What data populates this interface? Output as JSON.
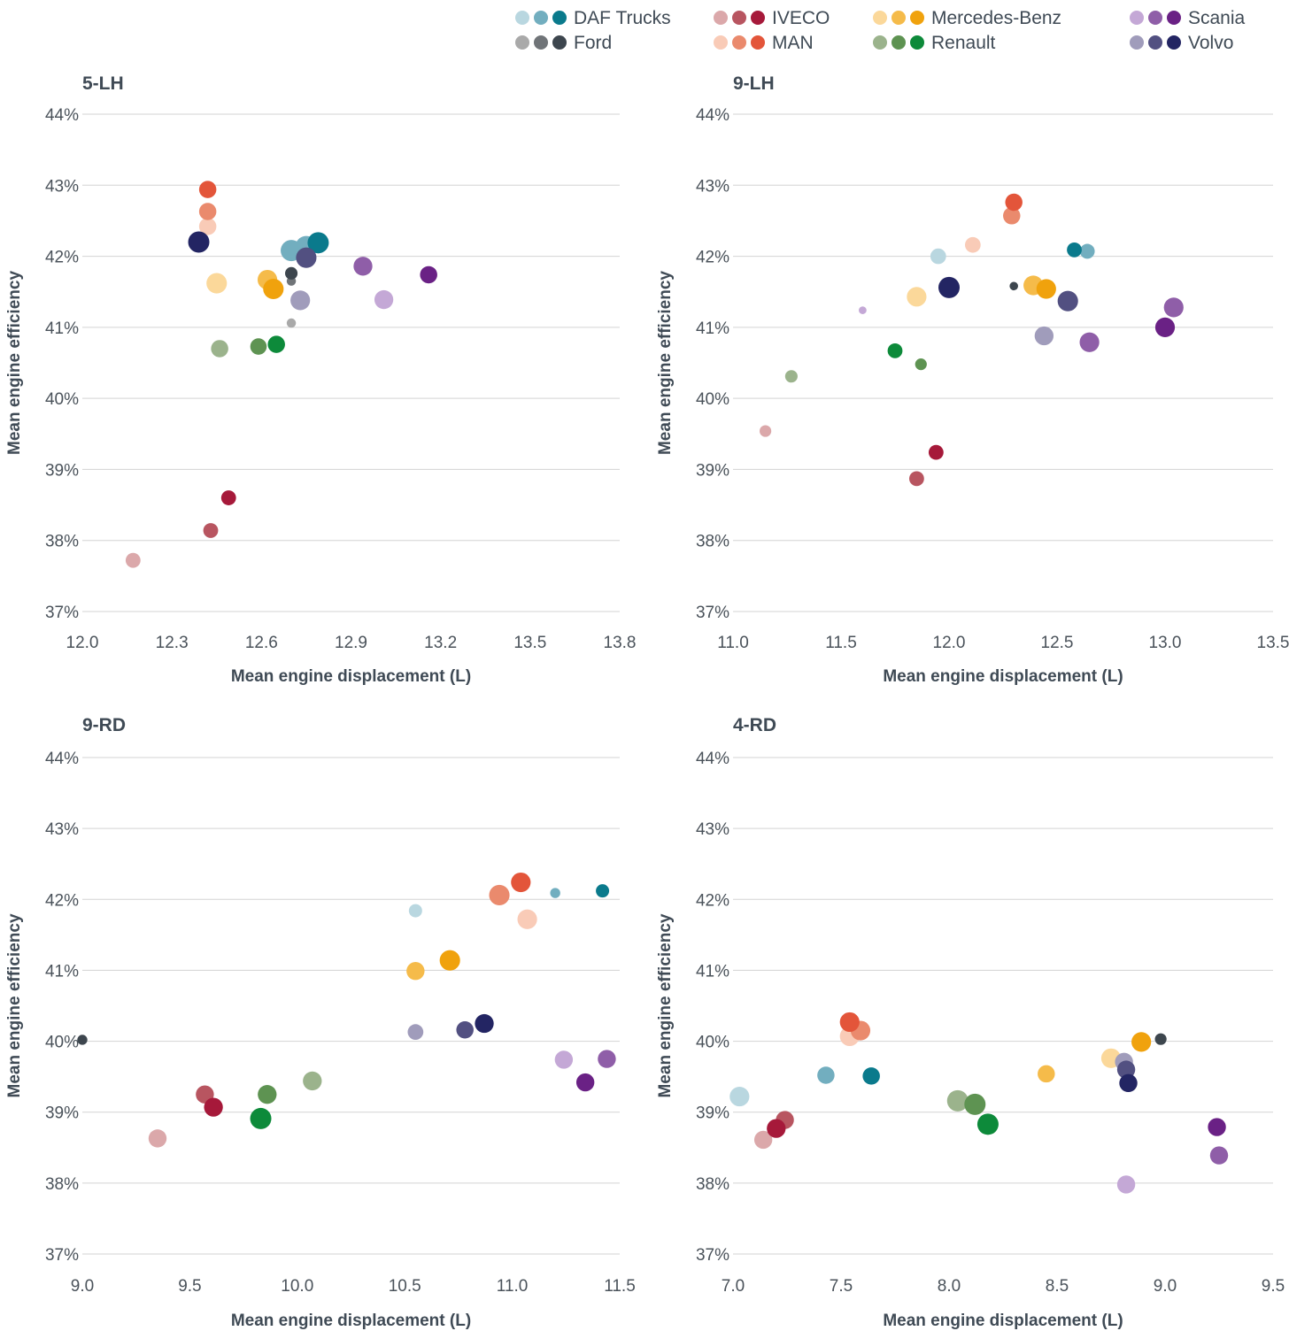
{
  "legend": [
    {
      "name": "DAF Trucks",
      "colors": [
        "#b9d7e0",
        "#72aebf",
        "#0a7a8c"
      ]
    },
    {
      "name": "IVECO",
      "colors": [
        "#dba8aa",
        "#b85560",
        "#a6193a"
      ]
    },
    {
      "name": "Mercedes-Benz",
      "colors": [
        "#fbd89a",
        "#f5bb4a",
        "#f0a20d"
      ]
    },
    {
      "name": "Scania",
      "colors": [
        "#c4a8d6",
        "#8f5ea8",
        "#6a2185"
      ]
    },
    {
      "name": "Ford",
      "colors": [
        "#a9a9a9",
        "#707478",
        "#3d464e"
      ]
    },
    {
      "name": "MAN",
      "colors": [
        "#f9cbb7",
        "#ea8a6d",
        "#e3553a"
      ]
    },
    {
      "name": "Renault",
      "colors": [
        "#9bb38c",
        "#5e9352",
        "#0d8a3a"
      ]
    },
    {
      "name": "Volvo",
      "colors": [
        "#a09cbb",
        "#525081",
        "#232563"
      ]
    }
  ],
  "chart_data": [
    {
      "type": "scatter",
      "title": "5-LH",
      "xlabel": "Mean engine displacement (L)",
      "ylabel": "Mean engine efficiency",
      "xlim": [
        12.0,
        13.8
      ],
      "ylim": [
        37,
        44
      ],
      "xticks": [
        "12.0",
        "12.3",
        "12.6",
        "12.9",
        "13.2",
        "13.5",
        "13.8"
      ],
      "yticks": [
        "37%",
        "38%",
        "39%",
        "40%",
        "41%",
        "42%",
        "43%",
        "44%"
      ],
      "points": [
        {
          "make": "DAF Trucks",
          "shade": 1,
          "x": 12.7,
          "y": 42.08,
          "size": 1.0
        },
        {
          "make": "DAF Trucks",
          "shade": 1,
          "x": 12.75,
          "y": 42.13,
          "size": 1.05
        },
        {
          "make": "DAF Trucks",
          "shade": 2,
          "x": 12.79,
          "y": 42.19,
          "size": 1.0
        },
        {
          "make": "IVECO",
          "shade": 0,
          "x": 12.17,
          "y": 37.72,
          "size": 0.6
        },
        {
          "make": "IVECO",
          "shade": 1,
          "x": 12.43,
          "y": 38.14,
          "size": 0.6
        },
        {
          "make": "IVECO",
          "shade": 2,
          "x": 12.49,
          "y": 38.6,
          "size": 0.6
        },
        {
          "make": "Mercedes-Benz",
          "shade": 0,
          "x": 12.45,
          "y": 41.62,
          "size": 0.95
        },
        {
          "make": "Mercedes-Benz",
          "shade": 1,
          "x": 12.62,
          "y": 41.67,
          "size": 0.9
        },
        {
          "make": "Mercedes-Benz",
          "shade": 2,
          "x": 12.64,
          "y": 41.54,
          "size": 0.95
        },
        {
          "make": "Scania",
          "shade": 0,
          "x": 13.01,
          "y": 41.39,
          "size": 0.85
        },
        {
          "make": "Scania",
          "shade": 1,
          "x": 12.94,
          "y": 41.86,
          "size": 0.85
        },
        {
          "make": "Scania",
          "shade": 2,
          "x": 13.16,
          "y": 41.74,
          "size": 0.75
        },
        {
          "make": "Ford",
          "shade": 0,
          "x": 12.7,
          "y": 41.06,
          "size": 0.25
        },
        {
          "make": "Ford",
          "shade": 1,
          "x": 12.7,
          "y": 41.65,
          "size": 0.25
        },
        {
          "make": "Ford",
          "shade": 2,
          "x": 12.7,
          "y": 41.76,
          "size": 0.45
        },
        {
          "make": "MAN",
          "shade": 0,
          "x": 12.42,
          "y": 42.42,
          "size": 0.75
        },
        {
          "make": "MAN",
          "shade": 1,
          "x": 12.42,
          "y": 42.63,
          "size": 0.75
        },
        {
          "make": "MAN",
          "shade": 2,
          "x": 12.42,
          "y": 42.94,
          "size": 0.75
        },
        {
          "make": "Renault",
          "shade": 0,
          "x": 12.46,
          "y": 40.7,
          "size": 0.75
        },
        {
          "make": "Renault",
          "shade": 1,
          "x": 12.59,
          "y": 40.73,
          "size": 0.7
        },
        {
          "make": "Renault",
          "shade": 2,
          "x": 12.65,
          "y": 40.76,
          "size": 0.75
        },
        {
          "make": "Volvo",
          "shade": 0,
          "x": 12.73,
          "y": 41.38,
          "size": 0.9
        },
        {
          "make": "Volvo",
          "shade": 1,
          "x": 12.75,
          "y": 41.98,
          "size": 0.95
        },
        {
          "make": "Volvo",
          "shade": 2,
          "x": 12.39,
          "y": 42.2,
          "size": 1.0
        }
      ]
    },
    {
      "type": "scatter",
      "title": "9-LH",
      "xlabel": "Mean engine displacement (L)",
      "ylabel": "Mean engine efficiency",
      "xlim": [
        11.0,
        13.5
      ],
      "ylim": [
        37,
        44
      ],
      "xticks": [
        "11.0",
        "11.5",
        "12.0",
        "12.5",
        "13.0",
        "13.5"
      ],
      "yticks": [
        "37%",
        "38%",
        "39%",
        "40%",
        "41%",
        "42%",
        "43%",
        "44%"
      ],
      "points": [
        {
          "make": "DAF Trucks",
          "shade": 0,
          "x": 11.95,
          "y": 42.0,
          "size": 0.65
        },
        {
          "make": "DAF Trucks",
          "shade": 1,
          "x": 12.64,
          "y": 42.07,
          "size": 0.6
        },
        {
          "make": "DAF Trucks",
          "shade": 2,
          "x": 12.58,
          "y": 42.09,
          "size": 0.6
        },
        {
          "make": "IVECO",
          "shade": 0,
          "x": 11.15,
          "y": 39.54,
          "size": 0.4
        },
        {
          "make": "IVECO",
          "shade": 1,
          "x": 11.85,
          "y": 38.87,
          "size": 0.6
        },
        {
          "make": "IVECO",
          "shade": 2,
          "x": 11.94,
          "y": 39.24,
          "size": 0.6
        },
        {
          "make": "Mercedes-Benz",
          "shade": 0,
          "x": 11.85,
          "y": 41.43,
          "size": 0.9
        },
        {
          "make": "Mercedes-Benz",
          "shade": 1,
          "x": 12.39,
          "y": 41.59,
          "size": 0.9
        },
        {
          "make": "Mercedes-Benz",
          "shade": 2,
          "x": 12.45,
          "y": 41.54,
          "size": 0.9
        },
        {
          "make": "Scania",
          "shade": 0,
          "x": 11.6,
          "y": 41.24,
          "size": 0.15
        },
        {
          "make": "Scania",
          "shade": 1,
          "x": 13.04,
          "y": 41.28,
          "size": 0.9
        },
        {
          "make": "Scania",
          "shade": 1,
          "x": 12.65,
          "y": 40.79,
          "size": 0.9
        },
        {
          "make": "Scania",
          "shade": 2,
          "x": 13.0,
          "y": 41.0,
          "size": 0.9
        },
        {
          "make": "Ford",
          "shade": 2,
          "x": 12.3,
          "y": 41.58,
          "size": 0.2
        },
        {
          "make": "MAN",
          "shade": 0,
          "x": 12.11,
          "y": 42.16,
          "size": 0.65
        },
        {
          "make": "MAN",
          "shade": 1,
          "x": 12.29,
          "y": 42.57,
          "size": 0.75
        },
        {
          "make": "MAN",
          "shade": 2,
          "x": 12.3,
          "y": 42.76,
          "size": 0.75
        },
        {
          "make": "Renault",
          "shade": 0,
          "x": 11.27,
          "y": 40.31,
          "size": 0.45
        },
        {
          "make": "Renault",
          "shade": 1,
          "x": 11.87,
          "y": 40.48,
          "size": 0.4
        },
        {
          "make": "Renault",
          "shade": 2,
          "x": 11.75,
          "y": 40.67,
          "size": 0.6
        },
        {
          "make": "Volvo",
          "shade": 0,
          "x": 12.44,
          "y": 40.88,
          "size": 0.85
        },
        {
          "make": "Volvo",
          "shade": 1,
          "x": 12.55,
          "y": 41.37,
          "size": 0.95
        },
        {
          "make": "Volvo",
          "shade": 2,
          "x": 12.0,
          "y": 41.56,
          "size": 1.0
        }
      ]
    },
    {
      "type": "scatter",
      "title": "9-RD",
      "xlabel": "Mean engine displacement (L)",
      "ylabel": "Mean engine efficiency",
      "xlim": [
        9.0,
        11.5
      ],
      "ylim": [
        37,
        44
      ],
      "xticks": [
        "9.0",
        "9.5",
        "10.0",
        "10.5",
        "11.0",
        "11.5"
      ],
      "yticks": [
        "37%",
        "38%",
        "39%",
        "40%",
        "41%",
        "42%",
        "43%",
        "44%"
      ],
      "points": [
        {
          "make": "DAF Trucks",
          "shade": 0,
          "x": 10.55,
          "y": 41.84,
          "size": 0.5
        },
        {
          "make": "DAF Trucks",
          "shade": 1,
          "x": 11.2,
          "y": 42.09,
          "size": 0.3
        },
        {
          "make": "DAF Trucks",
          "shade": 2,
          "x": 11.42,
          "y": 42.12,
          "size": 0.5
        },
        {
          "make": "IVECO",
          "shade": 0,
          "x": 9.35,
          "y": 38.63,
          "size": 0.8
        },
        {
          "make": "IVECO",
          "shade": 1,
          "x": 9.57,
          "y": 39.25,
          "size": 0.8
        },
        {
          "make": "IVECO",
          "shade": 2,
          "x": 9.61,
          "y": 39.07,
          "size": 0.85
        },
        {
          "make": "Mercedes-Benz",
          "shade": 1,
          "x": 10.55,
          "y": 40.99,
          "size": 0.8
        },
        {
          "make": "Mercedes-Benz",
          "shade": 2,
          "x": 10.71,
          "y": 41.14,
          "size": 0.95
        },
        {
          "make": "Scania",
          "shade": 0,
          "x": 11.24,
          "y": 39.74,
          "size": 0.8
        },
        {
          "make": "Scania",
          "shade": 1,
          "x": 11.44,
          "y": 39.75,
          "size": 0.8
        },
        {
          "make": "Scania",
          "shade": 2,
          "x": 11.34,
          "y": 39.42,
          "size": 0.8
        },
        {
          "make": "Ford",
          "shade": 2,
          "x": 9.0,
          "y": 40.02,
          "size": 0.3
        },
        {
          "make": "MAN",
          "shade": 0,
          "x": 11.07,
          "y": 41.72,
          "size": 0.9
        },
        {
          "make": "MAN",
          "shade": 1,
          "x": 10.94,
          "y": 42.06,
          "size": 0.95
        },
        {
          "make": "MAN",
          "shade": 2,
          "x": 11.04,
          "y": 42.24,
          "size": 0.9
        },
        {
          "make": "Renault",
          "shade": 0,
          "x": 10.07,
          "y": 39.44,
          "size": 0.85
        },
        {
          "make": "Renault",
          "shade": 1,
          "x": 9.86,
          "y": 39.25,
          "size": 0.85
        },
        {
          "make": "Renault",
          "shade": 2,
          "x": 9.83,
          "y": 38.91,
          "size": 1.0
        },
        {
          "make": "Volvo",
          "shade": 0,
          "x": 10.55,
          "y": 40.13,
          "size": 0.65
        },
        {
          "make": "Volvo",
          "shade": 1,
          "x": 10.78,
          "y": 40.16,
          "size": 0.75
        },
        {
          "make": "Volvo",
          "shade": 2,
          "x": 10.87,
          "y": 40.25,
          "size": 0.85
        }
      ]
    },
    {
      "type": "scatter",
      "title": "4-RD",
      "xlabel": "Mean engine displacement (L)",
      "ylabel": "Mean engine efficiency",
      "xlim": [
        7.0,
        9.5
      ],
      "ylim": [
        37,
        44
      ],
      "xticks": [
        "7.0",
        "7.5",
        "8.0",
        "8.5",
        "9.0",
        "9.5"
      ],
      "yticks": [
        "37%",
        "38%",
        "39%",
        "40%",
        "41%",
        "42%",
        "43%",
        "44%"
      ],
      "points": [
        {
          "make": "DAF Trucks",
          "shade": 0,
          "x": 7.03,
          "y": 39.22,
          "size": 0.9
        },
        {
          "make": "DAF Trucks",
          "shade": 1,
          "x": 7.43,
          "y": 39.52,
          "size": 0.75
        },
        {
          "make": "DAF Trucks",
          "shade": 2,
          "x": 7.64,
          "y": 39.51,
          "size": 0.75
        },
        {
          "make": "IVECO",
          "shade": 0,
          "x": 7.14,
          "y": 38.61,
          "size": 0.8
        },
        {
          "make": "IVECO",
          "shade": 1,
          "x": 7.24,
          "y": 38.89,
          "size": 0.8
        },
        {
          "make": "IVECO",
          "shade": 2,
          "x": 7.2,
          "y": 38.77,
          "size": 0.85
        },
        {
          "make": "Mercedes-Benz",
          "shade": 0,
          "x": 8.75,
          "y": 39.76,
          "size": 0.9
        },
        {
          "make": "Mercedes-Benz",
          "shade": 1,
          "x": 8.45,
          "y": 39.54,
          "size": 0.75
        },
        {
          "make": "Mercedes-Benz",
          "shade": 2,
          "x": 8.89,
          "y": 39.99,
          "size": 0.9
        },
        {
          "make": "Scania",
          "shade": 0,
          "x": 8.82,
          "y": 37.98,
          "size": 0.8
        },
        {
          "make": "Scania",
          "shade": 1,
          "x": 9.25,
          "y": 38.39,
          "size": 0.8
        },
        {
          "make": "Scania",
          "shade": 2,
          "x": 9.24,
          "y": 38.79,
          "size": 0.8
        },
        {
          "make": "Ford",
          "shade": 2,
          "x": 8.98,
          "y": 40.03,
          "size": 0.4
        },
        {
          "make": "MAN",
          "shade": 0,
          "x": 7.54,
          "y": 40.07,
          "size": 0.9
        },
        {
          "make": "MAN",
          "shade": 1,
          "x": 7.59,
          "y": 40.15,
          "size": 0.9
        },
        {
          "make": "MAN",
          "shade": 2,
          "x": 7.54,
          "y": 40.27,
          "size": 0.9
        },
        {
          "make": "Renault",
          "shade": 0,
          "x": 8.04,
          "y": 39.16,
          "size": 1.0
        },
        {
          "make": "Renault",
          "shade": 1,
          "x": 8.12,
          "y": 39.11,
          "size": 1.0
        },
        {
          "make": "Renault",
          "shade": 2,
          "x": 8.18,
          "y": 38.83,
          "size": 1.0
        },
        {
          "make": "Volvo",
          "shade": 0,
          "x": 8.81,
          "y": 39.71,
          "size": 0.8
        },
        {
          "make": "Volvo",
          "shade": 1,
          "x": 8.82,
          "y": 39.6,
          "size": 0.8
        },
        {
          "make": "Volvo",
          "shade": 2,
          "x": 8.83,
          "y": 39.41,
          "size": 0.8
        }
      ]
    }
  ]
}
